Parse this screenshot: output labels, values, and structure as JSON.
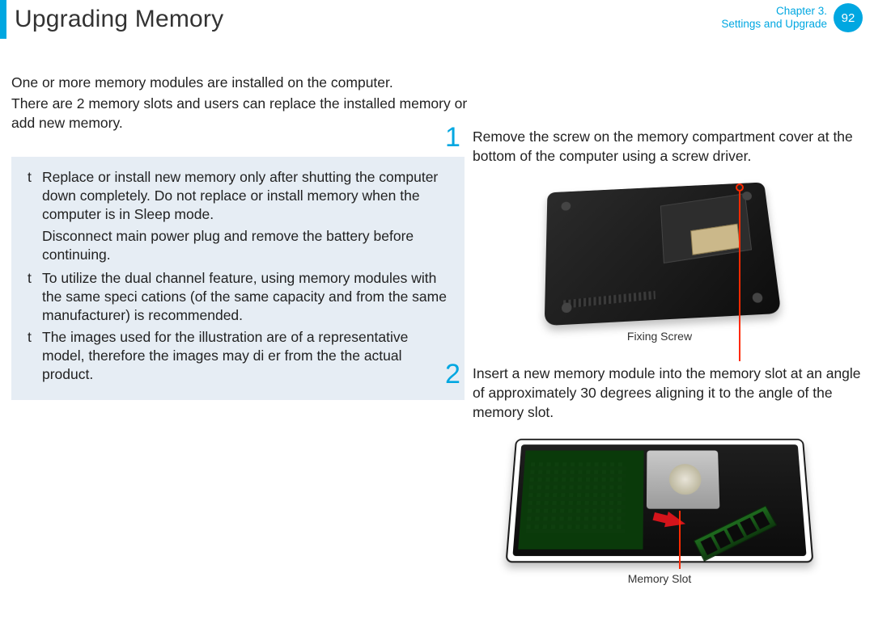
{
  "header": {
    "title": "Upgrading Memory",
    "chapter_line1": "Chapter 3.",
    "chapter_line2": "Settings and Upgrade",
    "page_number": "92",
    "accent_color": "#00a7e1"
  },
  "intro": {
    "p1": "One or more memory modules are installed on the computer.",
    "p2": "There are 2 memory slots and users can replace the installed memory or add new memory."
  },
  "notes": {
    "background_color": "#e6edf4",
    "bullet_glyph": "t",
    "items": [
      "Replace or install new memory only after shutting the computer down completely. Do not replace or install memory when the computer is in Sleep mode.",
      "To utilize the dual channel feature, using memory modules with the same speci cations (of the same capacity and from the same manufacturer) is recommended.",
      "The images used for the illustration are of a representative model, therefore the images may di er from the the actual product."
    ],
    "item0_sub": "Disconnect main power plug and remove the battery before continuing."
  },
  "steps": [
    {
      "num": "1",
      "text": "Remove the screw on the memory compartment cover at the bottom of the computer using a screw driver.",
      "figure_caption": "Fixing Screw",
      "callout_color": "#ff2a00"
    },
    {
      "num": "2",
      "text": "Insert a new memory module into the memory slot at an angle of approximately 30 degrees aligning it to the angle of the memory slot.",
      "figure_caption": "Memory Slot",
      "callout_color": "#ff2a00",
      "arrow_color": "#d4141b"
    }
  ],
  "styling": {
    "body_font_size_pt": 13,
    "title_font_size_pt": 23,
    "step_number_font_size_pt": 26,
    "caption_font_size_pt": 11,
    "text_color": "#222222",
    "accent_color": "#00a7e1"
  }
}
